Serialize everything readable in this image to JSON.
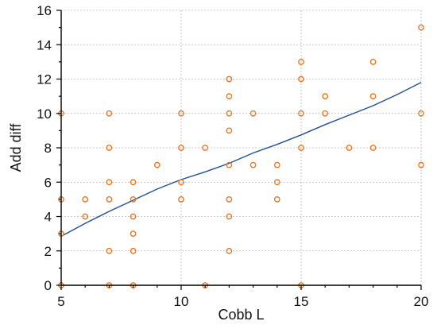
{
  "chart_data": {
    "type": "scatter",
    "xlabel": "Cobb L",
    "ylabel": "Add diff",
    "xlim": [
      5,
      20
    ],
    "ylim": [
      0,
      16
    ],
    "xticks": [
      5,
      10,
      15,
      20
    ],
    "yticks": [
      0,
      2,
      4,
      6,
      8,
      10,
      12,
      14,
      16
    ],
    "grid": true,
    "colors": {
      "points": "#e8731f",
      "trend": "#1f4e9c"
    },
    "points": [
      [
        5,
        10
      ],
      [
        5,
        5
      ],
      [
        5,
        3
      ],
      [
        5,
        0
      ],
      [
        6,
        5
      ],
      [
        6,
        4
      ],
      [
        7,
        10
      ],
      [
        7,
        8
      ],
      [
        7,
        6
      ],
      [
        7,
        5
      ],
      [
        7,
        2
      ],
      [
        7,
        0
      ],
      [
        8,
        6
      ],
      [
        8,
        5
      ],
      [
        8,
        4
      ],
      [
        8,
        3
      ],
      [
        8,
        2
      ],
      [
        8,
        0
      ],
      [
        9,
        7
      ],
      [
        10,
        10
      ],
      [
        10,
        8
      ],
      [
        10,
        6
      ],
      [
        10,
        5
      ],
      [
        11,
        8
      ],
      [
        11,
        0
      ],
      [
        12,
        12
      ],
      [
        12,
        11
      ],
      [
        12,
        10
      ],
      [
        12,
        9
      ],
      [
        12,
        7
      ],
      [
        12,
        5
      ],
      [
        12,
        4
      ],
      [
        12,
        2
      ],
      [
        13,
        10
      ],
      [
        13,
        7
      ],
      [
        14,
        7
      ],
      [
        14,
        6
      ],
      [
        14,
        5
      ],
      [
        15,
        13
      ],
      [
        15,
        12
      ],
      [
        15,
        10
      ],
      [
        15,
        8
      ],
      [
        15,
        0
      ],
      [
        16,
        11
      ],
      [
        16,
        10
      ],
      [
        17,
        8
      ],
      [
        18,
        13
      ],
      [
        18,
        11
      ],
      [
        18,
        8
      ],
      [
        20,
        15
      ],
      [
        20,
        10
      ],
      [
        20,
        7
      ]
    ],
    "trend_line": [
      [
        5,
        2.85
      ],
      [
        6,
        3.6
      ],
      [
        7,
        4.3
      ],
      [
        8,
        4.95
      ],
      [
        9,
        5.6
      ],
      [
        10,
        6.15
      ],
      [
        11,
        6.6
      ],
      [
        12,
        7.1
      ],
      [
        13,
        7.7
      ],
      [
        14,
        8.2
      ],
      [
        15,
        8.75
      ],
      [
        16,
        9.35
      ],
      [
        17,
        9.9
      ],
      [
        18,
        10.45
      ],
      [
        19,
        11.1
      ],
      [
        20,
        11.8
      ]
    ]
  }
}
